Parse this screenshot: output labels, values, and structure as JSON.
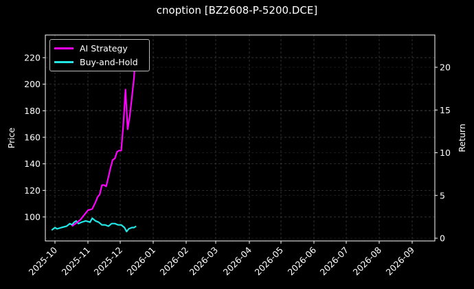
{
  "chart_data": {
    "type": "line",
    "title": "cnoption [BZ2608-P-5200.DCE]",
    "xlabel": "",
    "ylabel": "Price",
    "ylabel_right": "Return",
    "ylim": [
      86,
      235
    ],
    "ylim_right": [
      -0.3,
      23.8
    ],
    "grid": true,
    "legend_position": "upper left",
    "x_ticks": [
      "2025-10",
      "2025-11",
      "2025-12",
      "2026-01",
      "2026-02",
      "2026-03",
      "2026-04",
      "2026-05",
      "2026-06",
      "2026-07",
      "2026-08",
      "2026-09"
    ],
    "y_ticks": [
      100,
      120,
      140,
      160,
      180,
      200,
      220
    ],
    "y_ticks_right": [
      0,
      5,
      10,
      15,
      20
    ],
    "series": [
      {
        "name": "AI Strategy",
        "color": "#ff00ff",
        "axis": "left",
        "x": [
          "2025-10-17",
          "2025-10-22",
          "2025-10-25",
          "2025-10-28",
          "2025-11-01",
          "2025-11-05",
          "2025-11-08",
          "2025-11-10",
          "2025-11-12",
          "2025-11-14",
          "2025-11-16",
          "2025-11-18",
          "2025-11-20",
          "2025-11-22",
          "2025-11-24",
          "2025-11-26",
          "2025-11-28",
          "2025-11-30",
          "2025-12-02",
          "2025-12-04",
          "2025-12-06",
          "2025-12-08",
          "2025-12-10",
          "2025-12-12",
          "2025-12-14",
          "2025-12-16"
        ],
        "values": [
          93,
          96,
          98,
          101,
          105,
          106,
          111,
          115,
          117,
          124,
          124,
          123,
          130,
          137,
          143,
          144,
          149,
          150,
          150,
          170,
          196,
          166,
          176,
          190,
          205,
          229
        ]
      },
      {
        "name": "Buy-and-Hold",
        "color": "#22e5e5",
        "axis": "left",
        "x": [
          "2025-09-28",
          "2025-10-01",
          "2025-10-03",
          "2025-10-07",
          "2025-10-12",
          "2025-10-15",
          "2025-10-17",
          "2025-10-19",
          "2025-10-21",
          "2025-10-23",
          "2025-10-26",
          "2025-10-30",
          "2025-11-03",
          "2025-11-05",
          "2025-11-08",
          "2025-11-11",
          "2025-11-14",
          "2025-11-17",
          "2025-11-20",
          "2025-11-23",
          "2025-11-26",
          "2025-11-29",
          "2025-12-02",
          "2025-12-05",
          "2025-12-07",
          "2025-12-09",
          "2025-12-12",
          "2025-12-14",
          "2025-12-16"
        ],
        "values": [
          90,
          92,
          91,
          92,
          93,
          95,
          94,
          96,
          97,
          95,
          96,
          97,
          96,
          99,
          97,
          96,
          94,
          94,
          93,
          95,
          95,
          94,
          94,
          92,
          89,
          91,
          92,
          92,
          93
        ]
      }
    ]
  }
}
